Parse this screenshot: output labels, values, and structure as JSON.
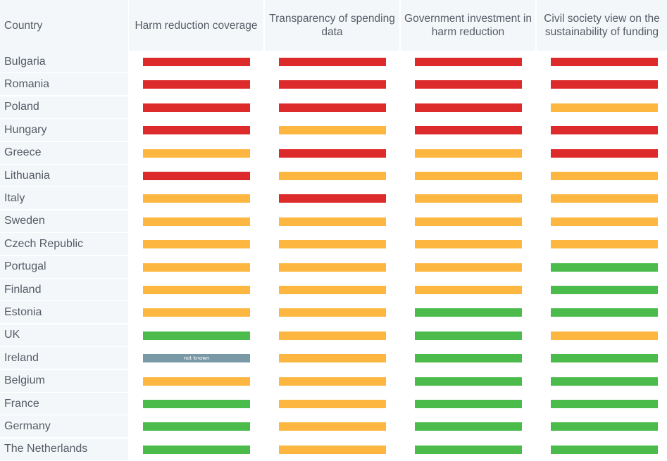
{
  "chart_data": {
    "type": "table",
    "columns": [
      "Country",
      "Harm reduction coverage",
      "Transparency of spending data",
      "Government investment in harm reduction",
      "Civil society view on the sustainability of funding"
    ],
    "status_colors": {
      "red": "#dd2a2a",
      "orange": "#fdb740",
      "green": "#4bbb4b",
      "grey": "#7a99a6"
    },
    "rows": [
      {
        "country": "Bulgaria",
        "ratings": [
          "red",
          "red",
          "red",
          "red"
        ]
      },
      {
        "country": "Romania",
        "ratings": [
          "red",
          "red",
          "red",
          "red"
        ]
      },
      {
        "country": "Poland",
        "ratings": [
          "red",
          "red",
          "red",
          "orange"
        ]
      },
      {
        "country": "Hungary",
        "ratings": [
          "red",
          "orange",
          "red",
          "red"
        ]
      },
      {
        "country": "Greece",
        "ratings": [
          "orange",
          "red",
          "orange",
          "red"
        ]
      },
      {
        "country": "Lithuania",
        "ratings": [
          "red",
          "orange",
          "orange",
          "orange"
        ]
      },
      {
        "country": "Italy",
        "ratings": [
          "orange",
          "red",
          "orange",
          "orange"
        ]
      },
      {
        "country": "Sweden",
        "ratings": [
          "orange",
          "orange",
          "orange",
          "orange"
        ]
      },
      {
        "country": "Czech Republic",
        "ratings": [
          "orange",
          "orange",
          "orange",
          "orange"
        ]
      },
      {
        "country": "Portugal",
        "ratings": [
          "orange",
          "orange",
          "orange",
          "green"
        ]
      },
      {
        "country": "Finland",
        "ratings": [
          "orange",
          "orange",
          "orange",
          "green"
        ]
      },
      {
        "country": "Estonia",
        "ratings": [
          "orange",
          "orange",
          "green",
          "green"
        ]
      },
      {
        "country": "UK",
        "ratings": [
          "green",
          "orange",
          "green",
          "orange"
        ]
      },
      {
        "country": "Ireland",
        "ratings": [
          "grey",
          "orange",
          "green",
          "green"
        ],
        "labels": [
          "not known",
          "",
          "",
          ""
        ]
      },
      {
        "country": "Belgium",
        "ratings": [
          "orange",
          "orange",
          "green",
          "green"
        ]
      },
      {
        "country": "France",
        "ratings": [
          "green",
          "orange",
          "green",
          "green"
        ]
      },
      {
        "country": "Germany",
        "ratings": [
          "green",
          "orange",
          "green",
          "green"
        ]
      },
      {
        "country": "The Netherlands",
        "ratings": [
          "green",
          "orange",
          "green",
          "green"
        ]
      }
    ]
  }
}
